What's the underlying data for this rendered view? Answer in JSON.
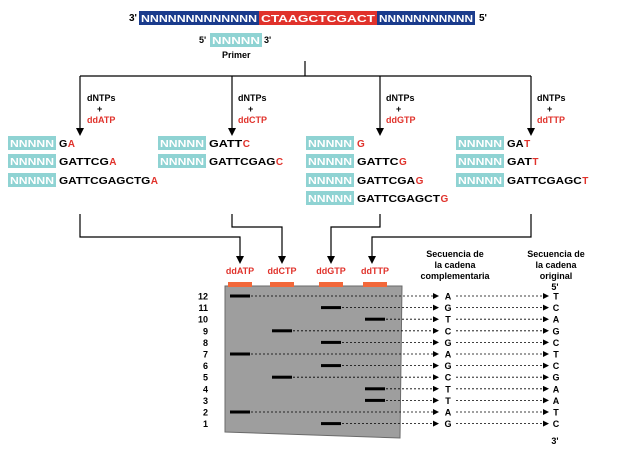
{
  "template": {
    "prime_left": "3'",
    "prime_right": "5'",
    "left_segment": "NNNNNNNNNNNNN",
    "middle_segment": "CTAAGCTCGACT",
    "right_segment": "NNNNNNNNNNN"
  },
  "primer": {
    "prime_left": "5'",
    "sequence": "NNNNN",
    "prime_right": "3'",
    "label": "Primer"
  },
  "colors": {
    "template_blue": "#1a3b8c",
    "template_red": "#e0322b",
    "primer_teal": "#8fd3d3",
    "ddntp_red": "#e0322b",
    "gel_gray": "#9e9e9e",
    "well_orange": "#f2683a"
  },
  "reactions": [
    {
      "dntps": "dNTPs",
      "plus": "+",
      "dd": "ddATP",
      "fragments": [
        {
          "primer": "NNNNN",
          "body": "G",
          "last": "A"
        },
        {
          "primer": "NNNNN",
          "body": "GATTCG",
          "last": "A"
        },
        {
          "primer": "NNNNN",
          "body": "GATTCGAGCTG",
          "last": "A"
        }
      ]
    },
    {
      "dntps": "dNTPs",
      "plus": "+",
      "dd": "ddCTP",
      "fragments": [
        {
          "primer": "NNNNN",
          "body": "GATT",
          "last": "C"
        },
        {
          "primer": "NNNNN",
          "body": "GATTCGAG",
          "last": "C"
        }
      ]
    },
    {
      "dntps": "dNTPs",
      "plus": "+",
      "dd": "ddGTP",
      "fragments": [
        {
          "primer": "NNNNN",
          "body": "",
          "last": "G"
        },
        {
          "primer": "NNNNN",
          "body": "GATTC",
          "last": "G"
        },
        {
          "primer": "NNNNN",
          "body": "GATTCGA",
          "last": "G"
        },
        {
          "primer": "NNNNN",
          "body": "GATTCGAGCT",
          "last": "G"
        }
      ]
    },
    {
      "dntps": "dNTPs",
      "plus": "+",
      "dd": "ddTTP",
      "fragments": [
        {
          "primer": "NNNNN",
          "body": "GA",
          "last": "T"
        },
        {
          "primer": "NNNNN",
          "body": "GAT",
          "last": "T"
        },
        {
          "primer": "NNNNN",
          "body": "GATTCGAGC",
          "last": "T"
        }
      ]
    }
  ],
  "gel": {
    "lanes": [
      "ddATP",
      "ddCTP",
      "ddGTP",
      "ddTTP"
    ],
    "complementary_header": [
      "Secuencia de",
      "la cadena",
      "complementaria"
    ],
    "original_header": [
      "Secuencia de",
      "la cadena",
      "original"
    ],
    "top_prime": "5'",
    "bottom_prime": "3'",
    "rows": [
      {
        "num": "12",
        "lane": 0,
        "comp": "A",
        "orig": "T"
      },
      {
        "num": "11",
        "lane": 2,
        "comp": "G",
        "orig": "C"
      },
      {
        "num": "10",
        "lane": 3,
        "comp": "T",
        "orig": "A"
      },
      {
        "num": "9",
        "lane": 1,
        "comp": "C",
        "orig": "G"
      },
      {
        "num": "8",
        "lane": 2,
        "comp": "G",
        "orig": "C"
      },
      {
        "num": "7",
        "lane": 0,
        "comp": "A",
        "orig": "T"
      },
      {
        "num": "6",
        "lane": 2,
        "comp": "G",
        "orig": "C"
      },
      {
        "num": "5",
        "lane": 1,
        "comp": "C",
        "orig": "G"
      },
      {
        "num": "4",
        "lane": 3,
        "comp": "T",
        "orig": "A"
      },
      {
        "num": "3",
        "lane": 3,
        "comp": "T",
        "orig": "A"
      },
      {
        "num": "2",
        "lane": 0,
        "comp": "A",
        "orig": "T"
      },
      {
        "num": "1",
        "lane": 2,
        "comp": "G",
        "orig": "C"
      }
    ]
  }
}
